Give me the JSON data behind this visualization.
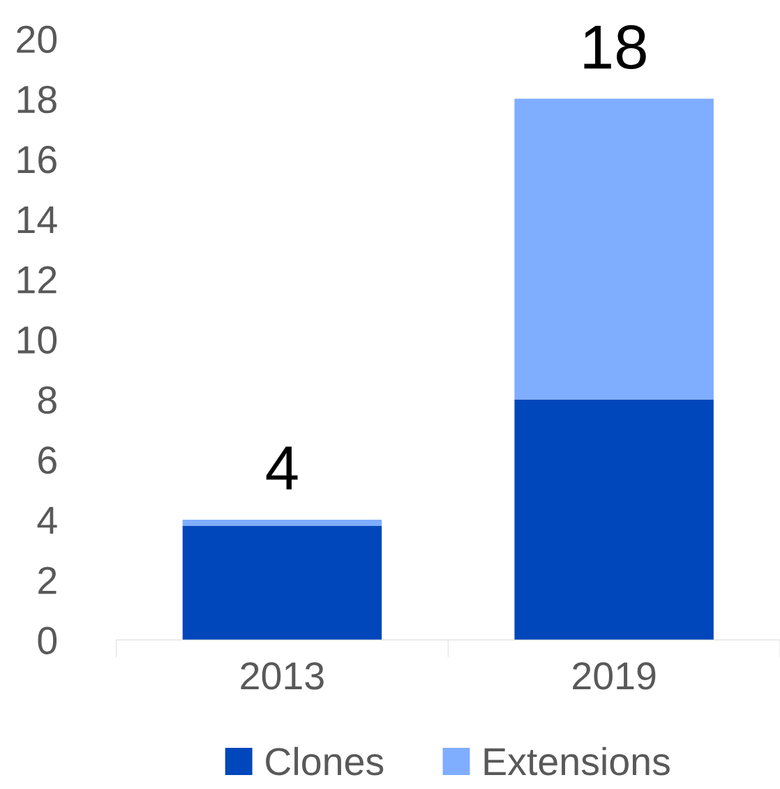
{
  "chart_data": {
    "type": "bar",
    "stacked": true,
    "categories": [
      "2013",
      "2019"
    ],
    "series": [
      {
        "name": "Clones",
        "color": "#0047bb",
        "values": [
          3.8,
          8
        ]
      },
      {
        "name": "Extensions",
        "color": "#7fadff",
        "values": [
          0.2,
          10
        ]
      }
    ],
    "totals": [
      "4",
      "18"
    ],
    "ylim": [
      0,
      20
    ],
    "yticks": [
      0,
      2,
      4,
      6,
      8,
      10,
      12,
      14,
      16,
      18,
      20
    ],
    "grid": false,
    "legend": "bottom"
  }
}
